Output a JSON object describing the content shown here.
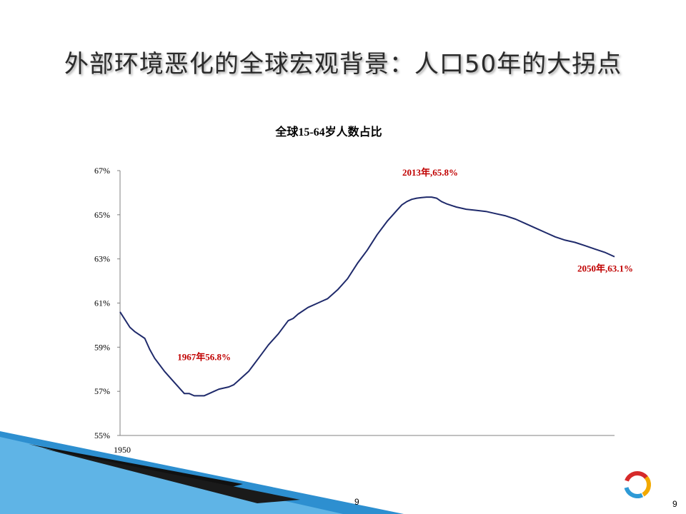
{
  "slide": {
    "title": "外部环境恶化的全球宏观背景：人口50年的大拐点",
    "page_number_center": "9",
    "page_number_right": "9"
  },
  "colors": {
    "line": "#1f2a6b",
    "annotation": "#c00000",
    "axis": "#808080",
    "corner_blue": "#2d8fd0"
  },
  "chart_data": {
    "type": "line",
    "title": "全球15-64岁人数占比",
    "xlabel": "",
    "ylabel": "",
    "xlim": [
      1950,
      2050
    ],
    "ylim": [
      55,
      67
    ],
    "yticks": [
      55,
      57,
      59,
      61,
      63,
      65,
      67
    ],
    "ytick_labels": [
      "55%",
      "57%",
      "59%",
      "61%",
      "63%",
      "65%",
      "67%"
    ],
    "xtick_labels": [
      {
        "x": 1950,
        "label": "1950"
      }
    ],
    "grid": false,
    "series": [
      {
        "x": [
          1950,
          1952,
          1953,
          1955,
          1956,
          1957,
          1959,
          1961,
          1963,
          1964,
          1965,
          1966,
          1967,
          1968,
          1969,
          1970,
          1972,
          1973,
          1974,
          1975,
          1976,
          1977,
          1978,
          1980,
          1982,
          1984,
          1985,
          1986,
          1988,
          1990,
          1991,
          1992,
          1994,
          1996,
          1998,
          2000,
          2002,
          2004,
          2006,
          2007,
          2008,
          2009,
          2010,
          2011,
          2012,
          2013,
          2014,
          2015,
          2016,
          2018,
          2020,
          2022,
          2024,
          2026,
          2028,
          2030,
          2032,
          2034,
          2036,
          2038,
          2040,
          2042,
          2044,
          2046,
          2048,
          2050
        ],
        "y": [
          60.6,
          59.9,
          59.7,
          59.4,
          58.9,
          58.5,
          57.9,
          57.4,
          56.9,
          56.9,
          56.8,
          56.8,
          56.8,
          56.9,
          57.0,
          57.1,
          57.2,
          57.3,
          57.5,
          57.7,
          57.9,
          58.2,
          58.5,
          59.1,
          59.6,
          60.2,
          60.3,
          60.5,
          60.8,
          61.0,
          61.1,
          61.2,
          61.6,
          62.1,
          62.8,
          63.4,
          64.1,
          64.7,
          65.2,
          65.45,
          65.6,
          65.7,
          65.75,
          65.78,
          65.8,
          65.8,
          65.75,
          65.6,
          65.5,
          65.35,
          65.25,
          65.2,
          65.15,
          65.05,
          64.95,
          64.8,
          64.6,
          64.4,
          64.2,
          64.0,
          63.85,
          63.75,
          63.6,
          63.45,
          63.3,
          63.1
        ]
      }
    ],
    "annotations": [
      {
        "text": "1967年56.8%",
        "x": 1967,
        "y": 56.8,
        "placement": "above"
      },
      {
        "text": "2013年,65.8%",
        "x": 2013,
        "y": 65.8,
        "placement": "above-left"
      },
      {
        "text": "2050年,63.1%",
        "x": 2050,
        "y": 63.1,
        "placement": "below-left"
      }
    ]
  }
}
